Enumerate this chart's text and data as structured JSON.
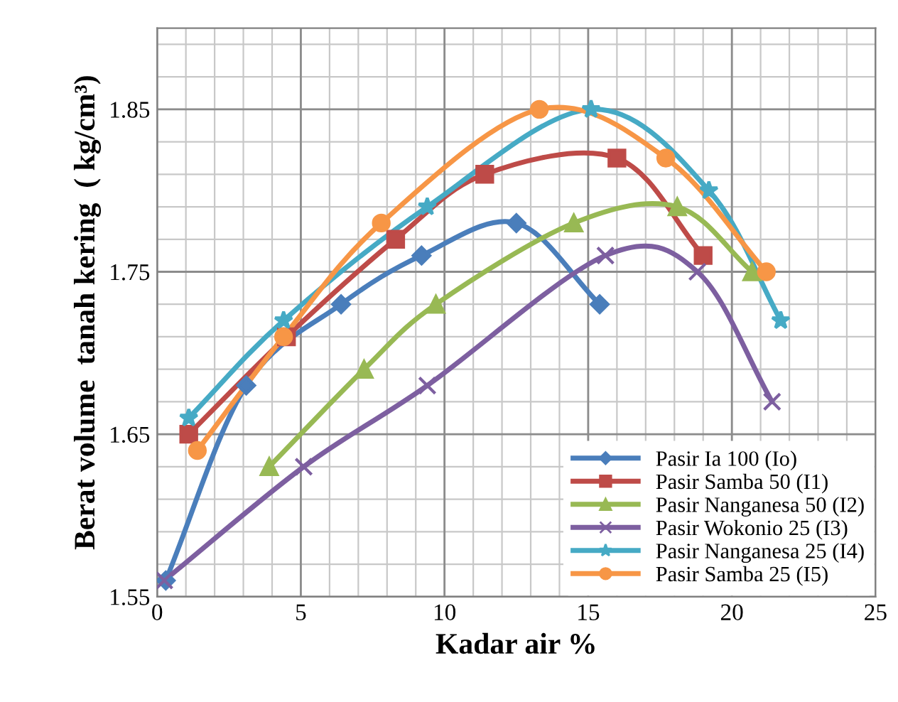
{
  "chart_data": {
    "type": "line",
    "xlabel": "Kadar air %",
    "ylabel": "Berat volume  tanah kering  ( kg/cm³)",
    "xlim": [
      0,
      25
    ],
    "ylim": [
      1.55,
      1.9
    ],
    "xticks": [
      0,
      5,
      10,
      15,
      20,
      25
    ],
    "yticks": [
      1.55,
      1.65,
      1.75,
      1.85
    ],
    "grid": true,
    "legend": "bottom right",
    "line_style": "solid",
    "series": [
      {
        "name": "Pasir Ia 100 (Io)",
        "color": "#4a7ebb",
        "marker": "diamond",
        "x": [
          0.3,
          3.1,
          6.4,
          9.2,
          12.5,
          15.4
        ],
        "values": [
          1.56,
          1.68,
          1.73,
          1.76,
          1.78,
          1.73
        ]
      },
      {
        "name": "Pasir Samba 50 (I1)",
        "color": "#be4b48",
        "marker": "square",
        "x": [
          1.1,
          4.5,
          8.3,
          11.4,
          16.0,
          19.0
        ],
        "values": [
          1.65,
          1.71,
          1.77,
          1.81,
          1.82,
          1.76
        ]
      },
      {
        "name": "Pasir Nanganesa 50 (I2)",
        "color": "#98b954",
        "marker": "triangle",
        "x": [
          3.9,
          7.2,
          9.7,
          14.5,
          18.1,
          20.7
        ],
        "values": [
          1.63,
          1.69,
          1.73,
          1.78,
          1.79,
          1.75
        ]
      },
      {
        "name": "Pasir Wokonio 25 (I3)",
        "color": "#7d5fa0",
        "marker": "cross",
        "x": [
          0.25,
          5.1,
          9.4,
          15.6,
          18.8,
          21.4
        ],
        "values": [
          1.56,
          1.63,
          1.68,
          1.76,
          1.75,
          1.67
        ]
      },
      {
        "name": "Pasir Nanganesa 25 (I4)",
        "color": "#46aac5",
        "marker": "star",
        "x": [
          1.1,
          4.4,
          9.4,
          15.1,
          19.2,
          21.7
        ],
        "values": [
          1.66,
          1.72,
          1.79,
          1.85,
          1.8,
          1.72
        ]
      },
      {
        "name": "Pasir Samba 25 (I5)",
        "color": "#f79646",
        "marker": "circle",
        "x": [
          1.4,
          4.4,
          7.8,
          13.3,
          17.7,
          21.2
        ],
        "values": [
          1.64,
          1.71,
          1.78,
          1.85,
          1.82,
          1.75
        ]
      }
    ]
  }
}
